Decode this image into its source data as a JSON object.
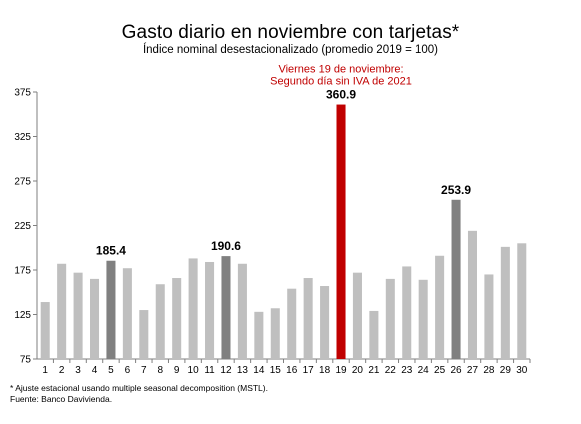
{
  "chart_data": {
    "type": "bar",
    "title": "Gasto diario  en noviembre  con tarjetas*",
    "subtitle": "Índice nominal desestacionalizado (promedio 2019 = 100)",
    "xlabel": "",
    "ylabel": "",
    "ylim": [
      75,
      375
    ],
    "yticks": [
      75,
      125,
      175,
      225,
      275,
      325,
      375
    ],
    "grid": false,
    "categories": [
      "1",
      "2",
      "3",
      "4",
      "5",
      "6",
      "7",
      "8",
      "9",
      "10",
      "11",
      "12",
      "13",
      "14",
      "15",
      "16",
      "17",
      "18",
      "19",
      "20",
      "21",
      "22",
      "23",
      "24",
      "25",
      "26",
      "27",
      "28",
      "29",
      "30"
    ],
    "values": [
      139,
      182,
      172,
      165,
      185.4,
      177,
      130,
      159,
      166,
      188,
      184,
      190.6,
      182,
      128,
      132,
      154,
      166,
      157,
      360.9,
      172,
      129,
      165,
      179,
      164,
      191,
      253.9,
      219,
      170,
      201,
      205
    ],
    "colors": {
      "default": "#bfbfbf",
      "highlight_gray": "#808080",
      "highlight_red": "#c00000",
      "axis": "#7f7f7f"
    },
    "highlights": [
      {
        "category": "5",
        "color": "highlight_gray",
        "label": "185.4"
      },
      {
        "category": "12",
        "color": "highlight_gray",
        "label": "190.6"
      },
      {
        "category": "19",
        "color": "highlight_red",
        "label": "360.9"
      },
      {
        "category": "26",
        "color": "highlight_gray",
        "label": "253.9"
      }
    ],
    "annotation": {
      "category": "19",
      "lines": [
        "Viernes 19 de noviembre:",
        "Segundo día sin IVA de 2021"
      ]
    }
  },
  "footnotes": {
    "note": "* Ajuste estacional usando multiple seasonal decomposition (MSTL).",
    "source": "Fuente: Banco Davivienda."
  }
}
